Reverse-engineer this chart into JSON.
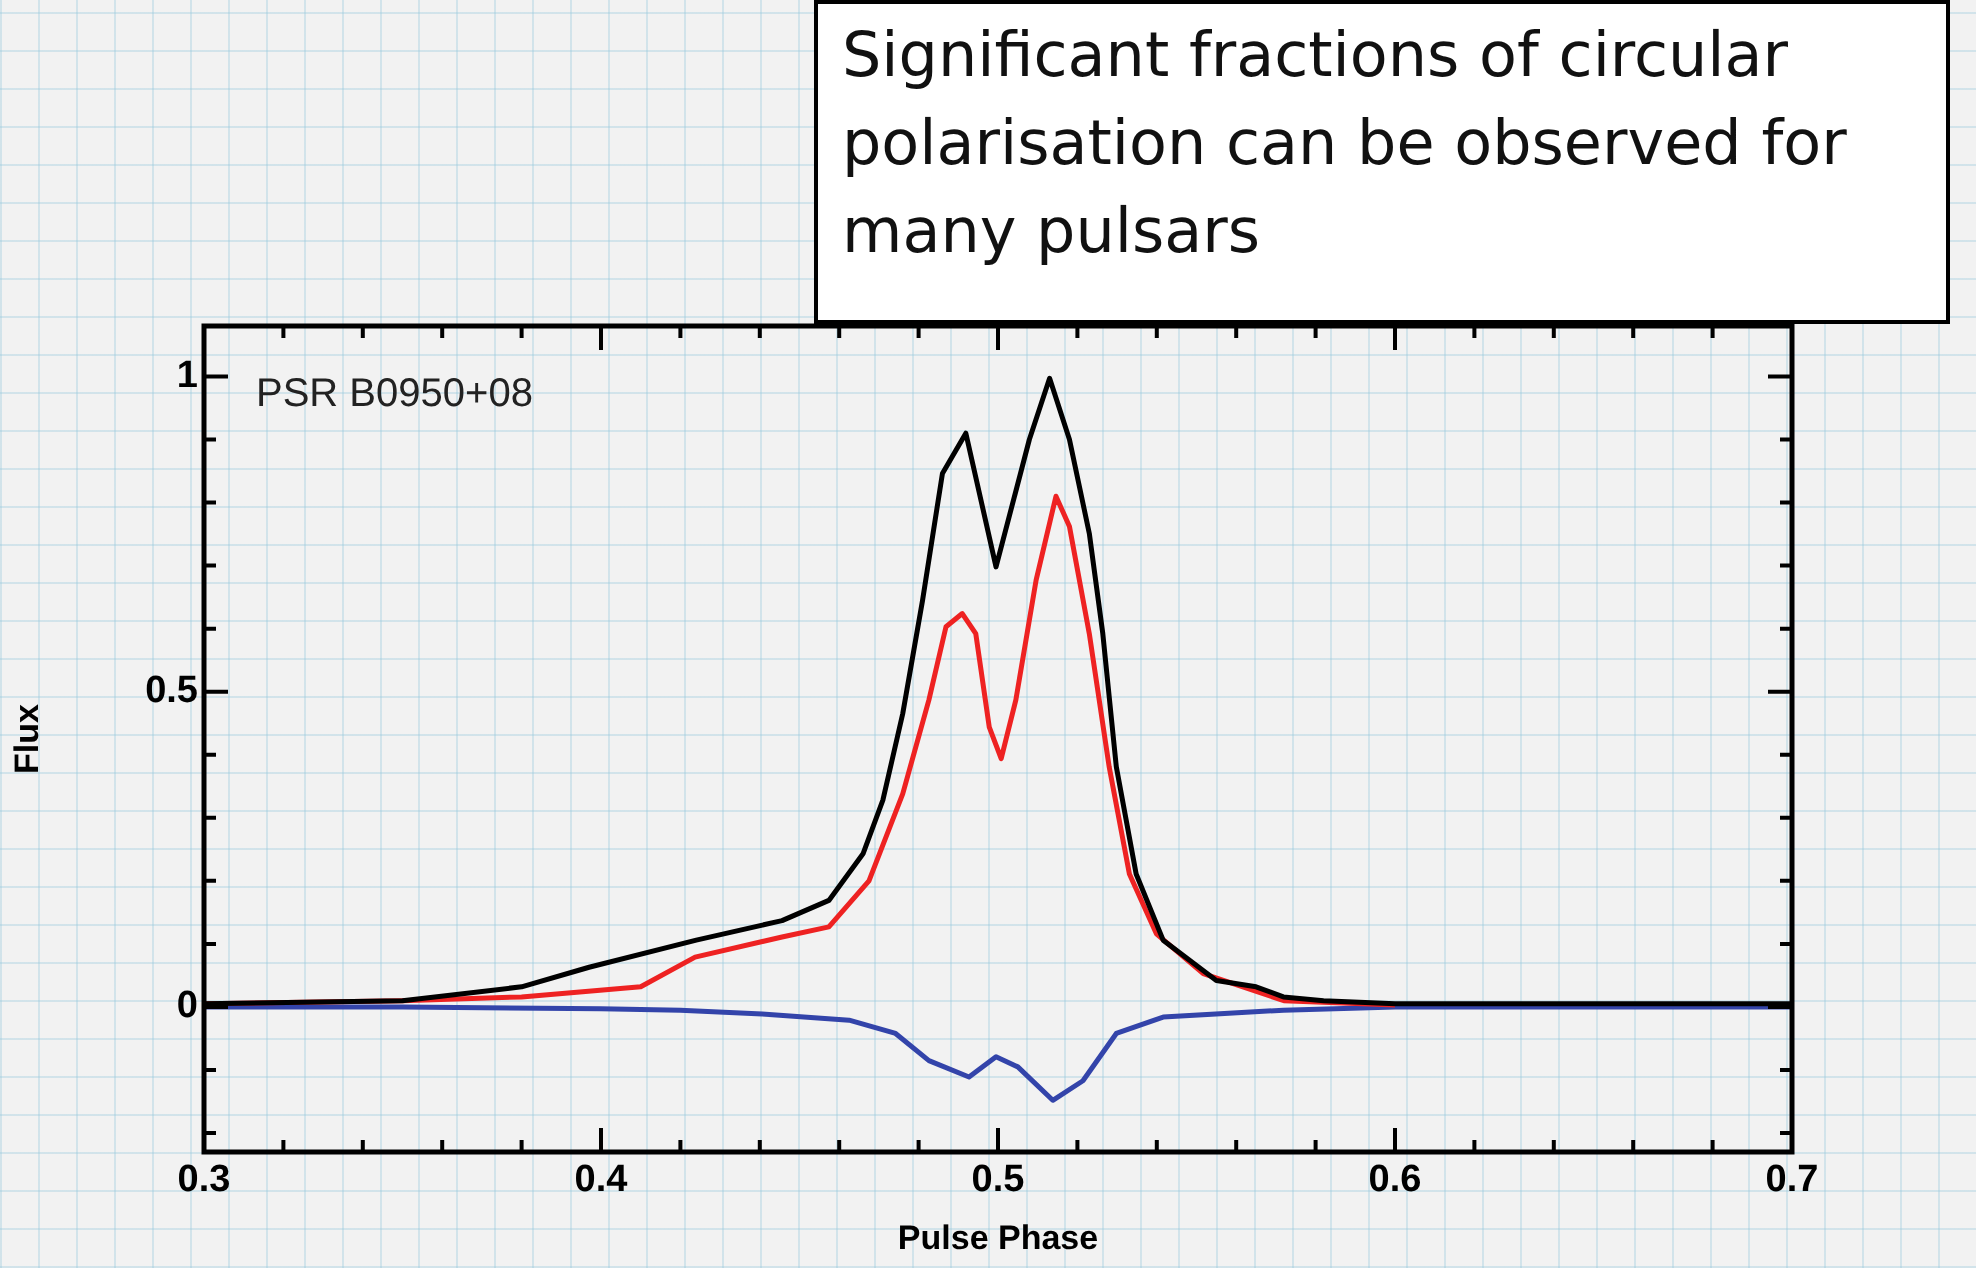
{
  "chart_data": {
    "type": "line",
    "xlabel": "Pulse Phase",
    "ylabel": "Flux",
    "annotations": [
      "Significant fractions of circular polarisation can be observed for many pulsars",
      {
        "text": "PSR B0950+08"
      }
    ],
    "xlim": [
      0.3,
      0.7
    ],
    "ylim": [
      -0.23,
      1.08
    ],
    "xticks": [
      0.3,
      {
        "value": 0.32,
        "label": null
      },
      {
        "value": 0.34,
        "label": null
      },
      {
        "value": 0.36,
        "label": null
      },
      {
        "value": 0.38,
        "label": null
      },
      0.4,
      {
        "value": 0.42,
        "label": null
      },
      {
        "value": 0.44,
        "label": null
      },
      {
        "value": 0.46,
        "label": null
      },
      {
        "value": 0.48,
        "label": null
      },
      0.5,
      {
        "value": 0.52,
        "label": null
      },
      {
        "value": 0.54,
        "label": null
      },
      {
        "value": 0.56,
        "label": null
      },
      {
        "value": 0.58,
        "label": null
      },
      0.6,
      {
        "value": 0.62,
        "label": null
      },
      {
        "value": 0.64,
        "label": null
      },
      {
        "value": 0.66,
        "label": null
      },
      {
        "value": 0.68,
        "label": null
      },
      0.7
    ],
    "yticks": [
      {
        "value": -0.2,
        "label": null
      },
      {
        "value": -0.1,
        "label": null
      },
      0,
      {
        "value": 0.1,
        "label": null
      },
      {
        "value": 0.2,
        "label": null
      },
      {
        "value": 0.3,
        "label": null
      },
      {
        "value": 0.4,
        "label": null
      },
      0.5,
      {
        "value": 0.6,
        "label": null
      },
      {
        "value": 0.7,
        "label": null
      },
      {
        "value": 0.8,
        "label": null
      },
      {
        "value": 0.9,
        "label": null
      },
      1
    ],
    "grid": false,
    "legend": false,
    "marker": "none",
    "line_style": "solid",
    "series": [
      {
        "color": "#000000",
        "x": [
          0.3,
          0.35,
          0.38,
          0.397,
          0.424,
          0.4456,
          0.4574,
          0.466,
          0.471,
          0.476,
          0.481,
          0.486,
          0.4919,
          0.4995,
          0.5079,
          0.513,
          0.518,
          0.523,
          0.5264,
          0.5298,
          0.5348,
          0.5416,
          0.555,
          0.565,
          0.5719,
          0.582,
          0.6,
          0.65,
          0.7
        ],
        "values": [
          0.005,
          0.01,
          0.032,
          0.063,
          0.106,
          0.137,
          0.169,
          0.243,
          0.328,
          0.465,
          0.645,
          0.846,
          0.91,
          0.698,
          0.9,
          0.997,
          0.9,
          0.751,
          0.592,
          0.381,
          0.211,
          0.106,
          0.042,
          0.032,
          0.016,
          0.01,
          0.005,
          0.005,
          0.005
        ]
      },
      {
        "color": "#ee2222",
        "x": [
          0.3,
          0.35,
          0.38,
          0.41,
          0.4237,
          0.4456,
          0.4574,
          0.4675,
          0.476,
          0.4826,
          0.4869,
          0.491,
          0.4944,
          0.4978,
          0.5008,
          0.5045,
          0.5096,
          0.5146,
          0.518,
          0.523,
          0.528,
          0.5331,
          0.5399,
          0.5517,
          0.572,
          0.6
        ],
        "values": [
          0.005,
          0.01,
          0.016,
          0.032,
          0.079,
          0.111,
          0.127,
          0.2,
          0.338,
          0.487,
          0.603,
          0.624,
          0.592,
          0.444,
          0.394,
          0.487,
          0.677,
          0.81,
          0.762,
          0.592,
          0.381,
          0.211,
          0.116,
          0.053,
          0.01,
          0.003
        ]
      },
      {
        "color": "#3344aa",
        "x": [
          0.3,
          0.35,
          0.4,
          0.42,
          0.4406,
          0.4625,
          0.4742,
          0.4826,
          0.4927,
          0.4995,
          0.505,
          0.5138,
          0.5214,
          0.5298,
          0.5416,
          0.5719,
          0.6,
          0.7
        ],
        "values": [
          0,
          0,
          -0.003,
          -0.005,
          -0.011,
          -0.021,
          -0.042,
          -0.085,
          -0.111,
          -0.079,
          -0.095,
          -0.148,
          -0.117,
          -0.042,
          -0.016,
          -0.005,
          0,
          0
        ]
      }
    ]
  }
}
